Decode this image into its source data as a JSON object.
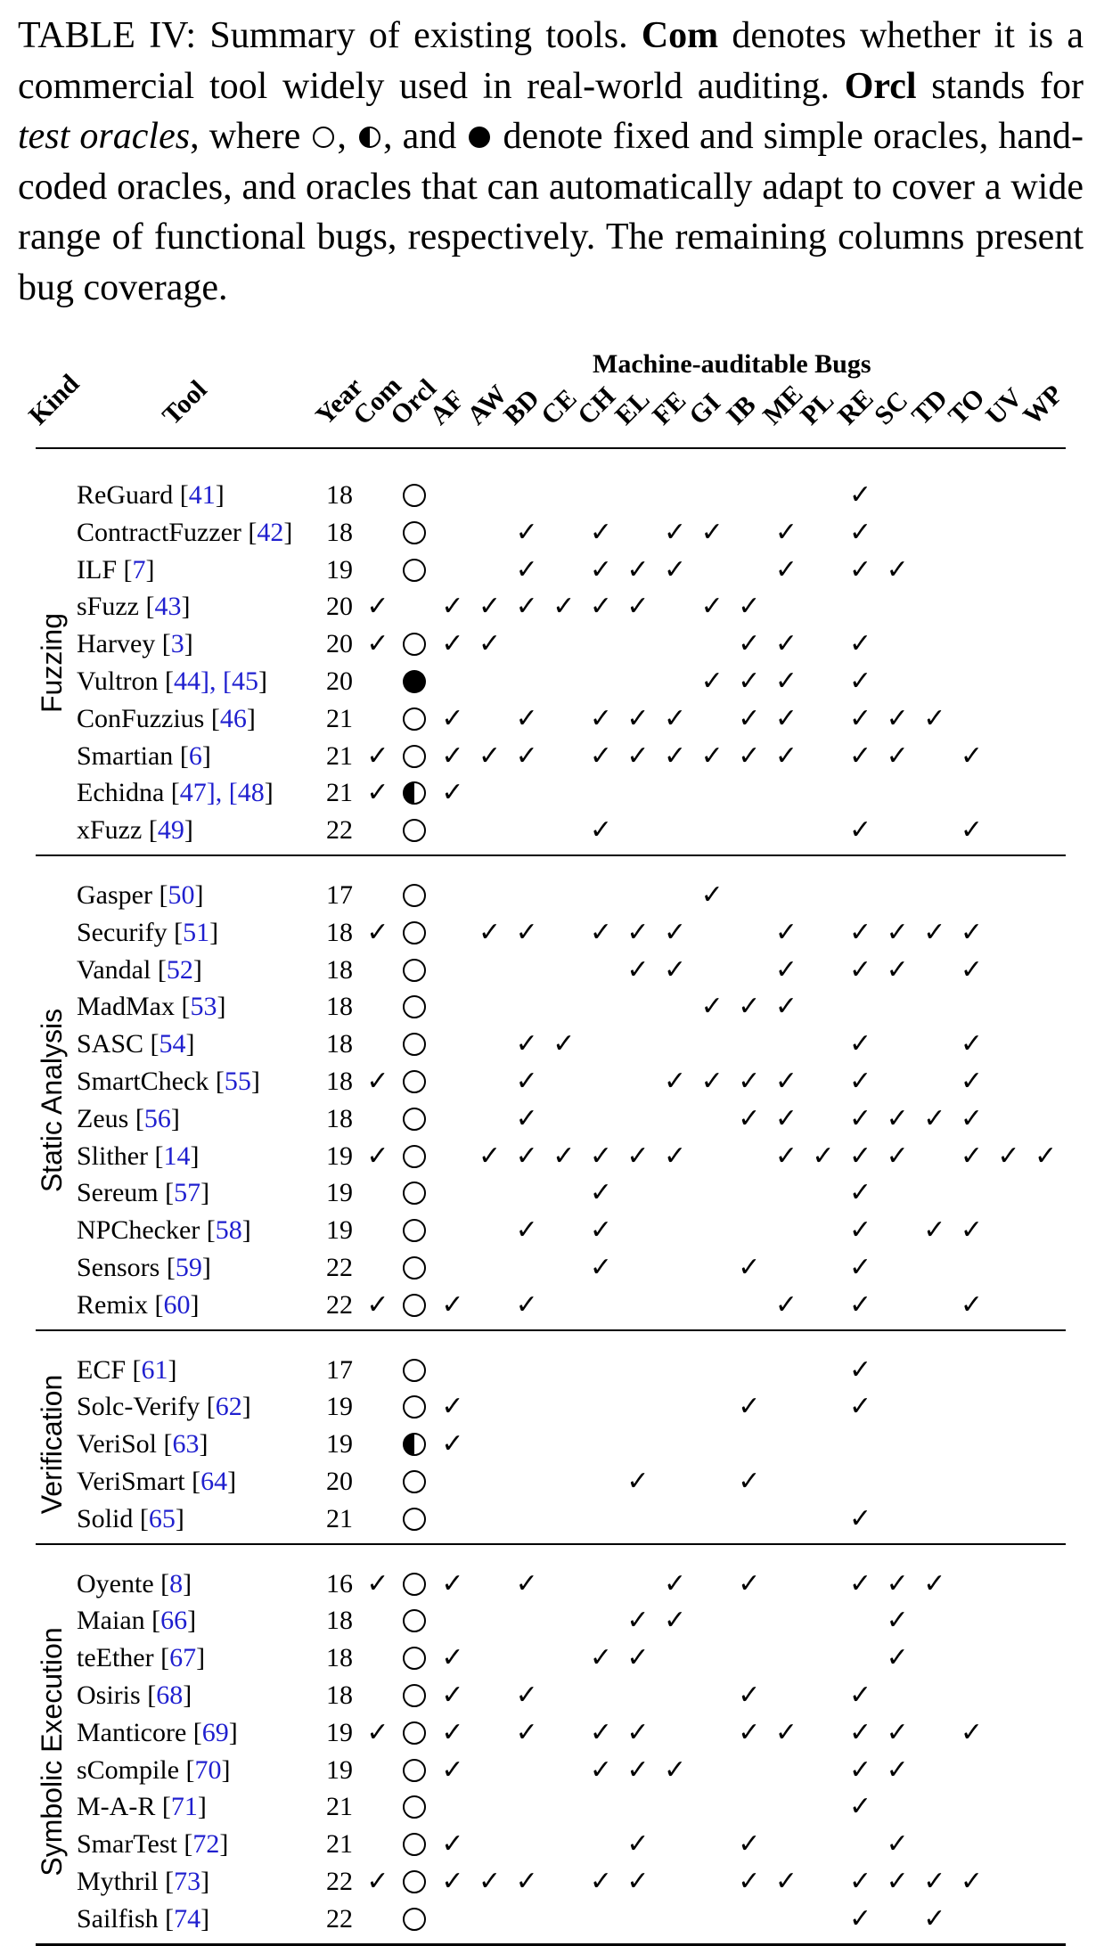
{
  "caption": {
    "label": "TABLE IV:",
    "t1": " Summary of existing tools. ",
    "com": "Com",
    "t2": " denotes whether it is a commercial tool widely used in real-world auditing. ",
    "orcl": "Orcl",
    "t3": " stands for ",
    "test_oracles": "test oracles",
    "t4": ", where ",
    "t5": ", ",
    "t6": ", and ",
    "t7": " denote fixed and simple oracles, hand-coded oracles, and oracles that can automatically adapt to cover a wide range of functional bugs, respectively. The remaining columns present bug coverage."
  },
  "header": {
    "kind": "Kind",
    "tool": "Tool",
    "year": "Year",
    "com": "Com",
    "orcl": "Orcl",
    "machine_auditable": "Machine-auditable Bugs",
    "bugs": [
      "AF",
      "AW",
      "BD",
      "CE",
      "CH",
      "EL",
      "FE",
      "GI",
      "IB",
      "ME",
      "PL",
      "RE",
      "SC",
      "TD",
      "TO",
      "UV",
      "WP"
    ]
  },
  "check_glyph": "✓",
  "groups": [
    {
      "name": "Fuzzing",
      "rows": [
        {
          "tool": "ReGuard",
          "refs": "41",
          "year": "18",
          "com": false,
          "orcl": "fixed",
          "bugs": [
            "RE"
          ]
        },
        {
          "tool": "ContractFuzzer",
          "refs": "42",
          "year": "18",
          "com": false,
          "orcl": "fixed",
          "bugs": [
            "BD",
            "CH",
            "FE",
            "GI",
            "ME",
            "RE"
          ]
        },
        {
          "tool": "ILF",
          "refs": "7",
          "year": "19",
          "com": false,
          "orcl": "fixed",
          "bugs": [
            "BD",
            "CH",
            "EL",
            "FE",
            "ME",
            "RE",
            "SC"
          ]
        },
        {
          "tool": "sFuzz",
          "refs": "43",
          "year": "20",
          "com": true,
          "orcl": "none",
          "bugs": [
            "AF",
            "AW",
            "BD",
            "CE",
            "CH",
            "EL",
            "GI",
            "IB"
          ]
        },
        {
          "tool": "Harvey",
          "refs": "3",
          "year": "20",
          "com": true,
          "orcl": "fixed",
          "bugs": [
            "AF",
            "AW",
            "IB",
            "ME",
            "RE"
          ]
        },
        {
          "tool": "Vultron",
          "refs": "44], [45",
          "year": "20",
          "com": false,
          "orcl": "adaptive",
          "bugs": [
            "GI",
            "IB",
            "ME",
            "RE"
          ]
        },
        {
          "tool": "ConFuzzius",
          "refs": "46",
          "year": "21",
          "com": false,
          "orcl": "fixed",
          "bugs": [
            "AF",
            "BD",
            "CH",
            "EL",
            "FE",
            "IB",
            "ME",
            "RE",
            "SC",
            "TD"
          ]
        },
        {
          "tool": "Smartian",
          "refs": "6",
          "year": "21",
          "com": true,
          "orcl": "fixed",
          "bugs": [
            "AF",
            "AW",
            "BD",
            "CH",
            "EL",
            "FE",
            "GI",
            "IB",
            "ME",
            "RE",
            "SC",
            "TO"
          ]
        },
        {
          "tool": "Echidna",
          "refs": "47], [48",
          "year": "21",
          "com": true,
          "orcl": "hand",
          "bugs": [
            "AF"
          ]
        },
        {
          "tool": "xFuzz",
          "refs": "49",
          "year": "22",
          "com": false,
          "orcl": "fixed",
          "bugs": [
            "CH",
            "RE",
            "TO"
          ]
        }
      ]
    },
    {
      "name": "Static Analysis",
      "rows": [
        {
          "tool": "Gasper",
          "refs": "50",
          "year": "17",
          "com": false,
          "orcl": "fixed",
          "bugs": [
            "GI"
          ]
        },
        {
          "tool": "Securify",
          "refs": "51",
          "year": "18",
          "com": true,
          "orcl": "fixed",
          "bugs": [
            "AW",
            "BD",
            "CH",
            "EL",
            "FE",
            "ME",
            "RE",
            "SC",
            "TD",
            "TO"
          ]
        },
        {
          "tool": "Vandal",
          "refs": "52",
          "year": "18",
          "com": false,
          "orcl": "fixed",
          "bugs": [
            "EL",
            "FE",
            "ME",
            "RE",
            "SC",
            "TO"
          ]
        },
        {
          "tool": "MadMax",
          "refs": "53",
          "year": "18",
          "com": false,
          "orcl": "fixed",
          "bugs": [
            "GI",
            "IB",
            "ME"
          ]
        },
        {
          "tool": "SASC",
          "refs": "54",
          "year": "18",
          "com": false,
          "orcl": "fixed",
          "bugs": [
            "BD",
            "CE",
            "RE",
            "TO"
          ]
        },
        {
          "tool": "SmartCheck",
          "refs": "55",
          "year": "18",
          "com": true,
          "orcl": "fixed",
          "bugs": [
            "BD",
            "FE",
            "GI",
            "IB",
            "ME",
            "RE",
            "TO"
          ]
        },
        {
          "tool": "Zeus",
          "refs": "56",
          "year": "18",
          "com": false,
          "orcl": "fixed",
          "bugs": [
            "BD",
            "IB",
            "ME",
            "RE",
            "SC",
            "TD",
            "TO"
          ]
        },
        {
          "tool": "Slither",
          "refs": "14",
          "year": "19",
          "com": true,
          "orcl": "fixed",
          "bugs": [
            "AW",
            "BD",
            "CE",
            "CH",
            "EL",
            "FE",
            "ME",
            "PL",
            "RE",
            "SC",
            "TO",
            "UV",
            "WP"
          ]
        },
        {
          "tool": "Sereum",
          "refs": "57",
          "year": "19",
          "com": false,
          "orcl": "fixed",
          "bugs": [
            "CH",
            "RE"
          ]
        },
        {
          "tool": "NPChecker",
          "refs": "58",
          "year": "19",
          "com": false,
          "orcl": "fixed",
          "bugs": [
            "BD",
            "CH",
            "RE",
            "TD",
            "TO"
          ]
        },
        {
          "tool": "Sensors",
          "refs": "59",
          "year": "22",
          "com": false,
          "orcl": "fixed",
          "bugs": [
            "CH",
            "IB",
            "RE"
          ]
        },
        {
          "tool": "Remix",
          "refs": "60",
          "year": "22",
          "com": true,
          "orcl": "fixed",
          "bugs": [
            "AF",
            "BD",
            "ME",
            "RE",
            "TO"
          ]
        }
      ]
    },
    {
      "name": "Verification",
      "rows": [
        {
          "tool": "ECF",
          "refs": "61",
          "year": "17",
          "com": false,
          "orcl": "fixed",
          "bugs": [
            "RE"
          ]
        },
        {
          "tool": "Solc-Verify",
          "refs": "62",
          "year": "19",
          "com": false,
          "orcl": "fixed",
          "bugs": [
            "AF",
            "IB",
            "RE"
          ]
        },
        {
          "tool": "VeriSol",
          "refs": "63",
          "year": "19",
          "com": false,
          "orcl": "hand",
          "bugs": [
            "AF"
          ]
        },
        {
          "tool": "VeriSmart",
          "refs": "64",
          "year": "20",
          "com": false,
          "orcl": "fixed",
          "bugs": [
            "EL",
            "IB"
          ]
        },
        {
          "tool": "Solid",
          "refs": "65",
          "year": "21",
          "com": false,
          "orcl": "fixed",
          "bugs": [
            "RE"
          ]
        }
      ]
    },
    {
      "name": "Symbolic Execution",
      "rows": [
        {
          "tool": "Oyente",
          "refs": "8",
          "year": "16",
          "com": true,
          "orcl": "fixed",
          "bugs": [
            "AF",
            "BD",
            "FE",
            "IB",
            "RE",
            "SC",
            "TD"
          ]
        },
        {
          "tool": "Maian",
          "refs": "66",
          "year": "18",
          "com": false,
          "orcl": "fixed",
          "bugs": [
            "EL",
            "FE",
            "SC"
          ]
        },
        {
          "tool": "teEther",
          "refs": "67",
          "year": "18",
          "com": false,
          "orcl": "fixed",
          "bugs": [
            "AF",
            "CH",
            "EL",
            "SC"
          ]
        },
        {
          "tool": "Osiris",
          "refs": "68",
          "year": "18",
          "com": false,
          "orcl": "fixed",
          "bugs": [
            "AF",
            "BD",
            "IB",
            "RE"
          ]
        },
        {
          "tool": "Manticore",
          "refs": "69",
          "year": "19",
          "com": true,
          "orcl": "fixed",
          "bugs": [
            "AF",
            "BD",
            "CH",
            "EL",
            "IB",
            "ME",
            "RE",
            "SC",
            "TO"
          ]
        },
        {
          "tool": "sCompile",
          "refs": "70",
          "year": "19",
          "com": false,
          "orcl": "fixed",
          "bugs": [
            "AF",
            "CH",
            "EL",
            "FE",
            "RE",
            "SC"
          ]
        },
        {
          "tool": "M-A-R",
          "refs": "71",
          "year": "21",
          "com": false,
          "orcl": "fixed",
          "bugs": [
            "RE"
          ]
        },
        {
          "tool": "SmarTest",
          "refs": "72",
          "year": "21",
          "com": false,
          "orcl": "fixed",
          "bugs": [
            "AF",
            "EL",
            "IB",
            "SC"
          ]
        },
        {
          "tool": "Mythril",
          "refs": "73",
          "year": "22",
          "com": true,
          "orcl": "fixed",
          "bugs": [
            "AF",
            "AW",
            "BD",
            "CH",
            "EL",
            "IB",
            "ME",
            "RE",
            "SC",
            "TD",
            "TO"
          ]
        },
        {
          "tool": "Sailfish",
          "refs": "74",
          "year": "22",
          "com": false,
          "orcl": "fixed",
          "bugs": [
            "RE",
            "TD"
          ]
        }
      ]
    }
  ]
}
